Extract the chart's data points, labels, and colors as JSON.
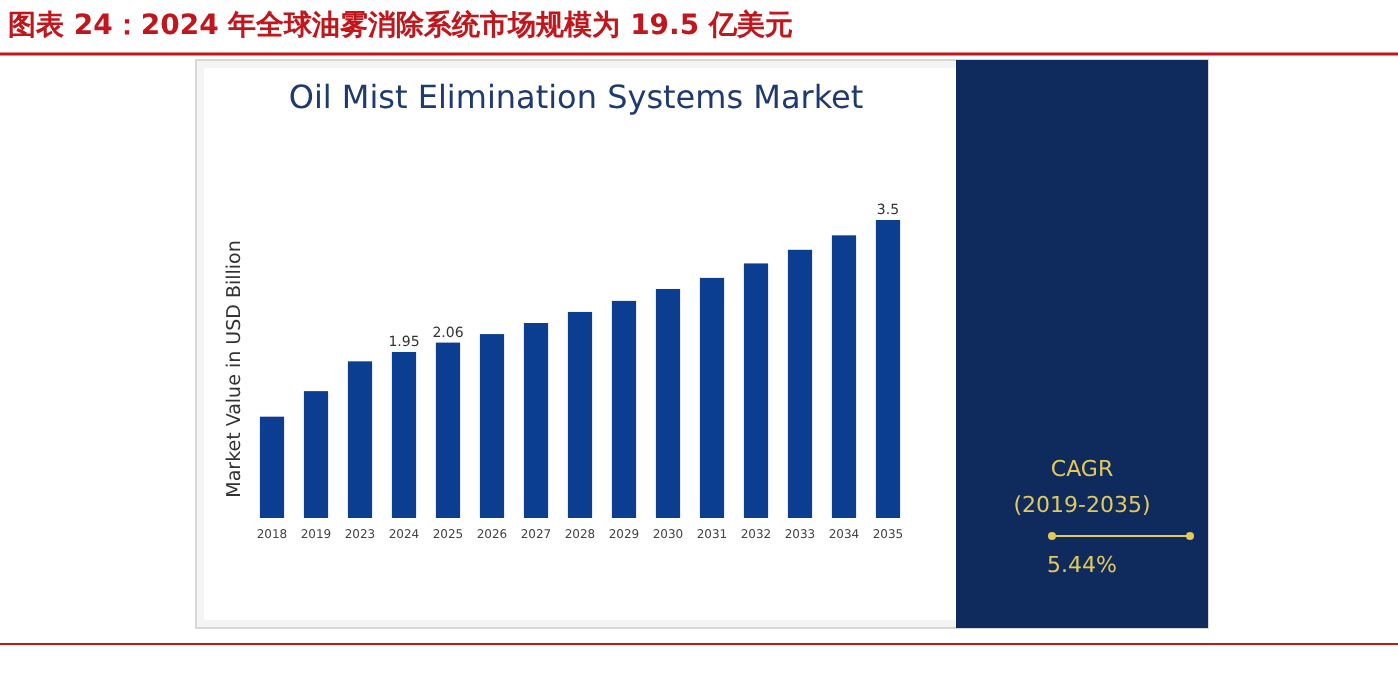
{
  "chart_data": {
    "type": "bar",
    "title": "图表 24：2024 年全球油雾消除系统市场规模为 19.5 亿美元",
    "subtitle": "Oil Mist Elimination Systems Market",
    "ylabel": "Market Value in USD Billion",
    "categories": [
      "2018",
      "2019",
      "2023",
      "2024",
      "2025",
      "2026",
      "2027",
      "2028",
      "2029",
      "2030",
      "2031",
      "2032",
      "2033",
      "2034",
      "2035"
    ],
    "values": [
      1.19,
      1.49,
      1.84,
      1.95,
      2.06,
      2.16,
      2.29,
      2.42,
      2.55,
      2.69,
      2.82,
      2.99,
      3.15,
      3.32,
      3.5
    ],
    "value_labels": [
      null,
      null,
      null,
      "1.95",
      "2.06",
      null,
      null,
      null,
      null,
      null,
      null,
      null,
      null,
      null,
      "3.5"
    ],
    "color": "#0b3d91",
    "annotations": [
      "CAGR",
      "(2019-2035)",
      "5.44%"
    ]
  }
}
